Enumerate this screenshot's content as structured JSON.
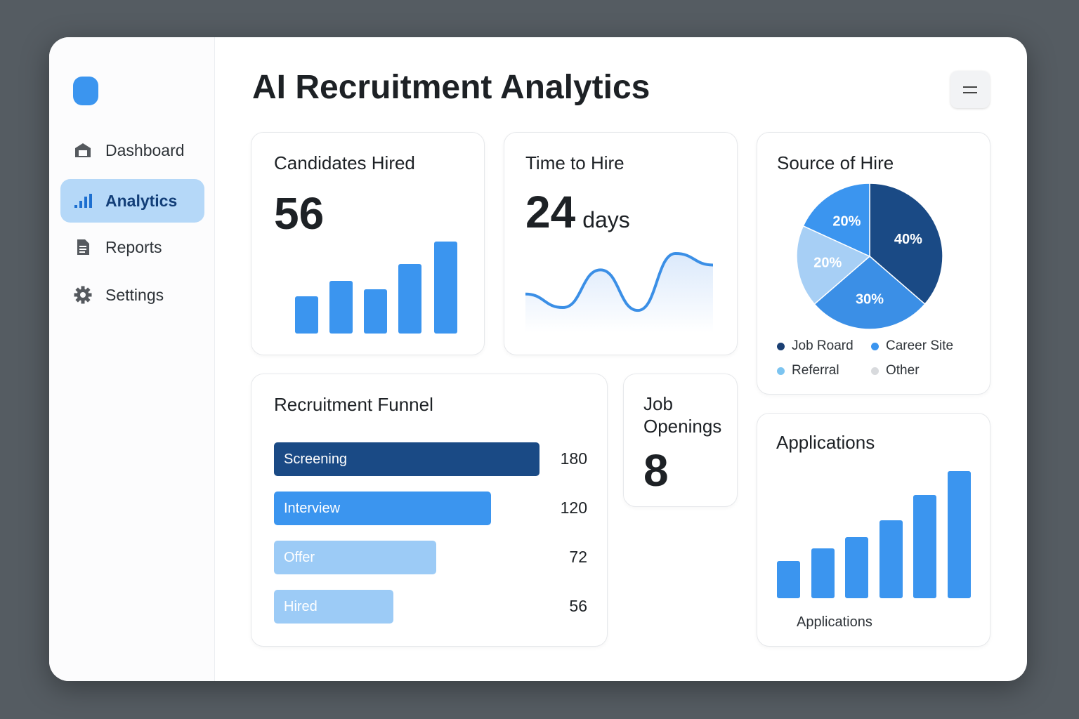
{
  "header": {
    "title": "AI Recruitment Analytics",
    "menu_icon": "menu-icon"
  },
  "sidebar": {
    "items": [
      {
        "label": "Dashboard",
        "icon": "home-icon"
      },
      {
        "label": "Analytics",
        "icon": "bar-chart-icon",
        "active": true
      },
      {
        "label": "Reports",
        "icon": "document-icon"
      },
      {
        "label": "Settings",
        "icon": "gear-icon"
      }
    ]
  },
  "colors": {
    "accent": "#3b95ef",
    "dark": "#1a4a85",
    "light": "#9ccbf6",
    "active_bg": "#b5d8f8"
  },
  "candidates_hired": {
    "title": "Candidates Hired",
    "value": "56"
  },
  "time_to_hire": {
    "title": "Time to Hire",
    "value": "24",
    "unit": "days"
  },
  "job_openings": {
    "title": "Job Openings",
    "value": "8"
  },
  "chart_data": [
    {
      "type": "bar",
      "title": "Candidates Hired",
      "values": [
        53,
        75,
        63,
        99,
        131
      ]
    },
    {
      "type": "line",
      "title": "Time to Hire",
      "values": [
        58,
        44,
        83,
        41,
        100,
        88
      ]
    },
    {
      "type": "pie",
      "title": "Source of Hire",
      "slices": [
        {
          "name": "Job Roard",
          "value": 40,
          "label": "40%",
          "color": "#1a4a85"
        },
        {
          "name": "Career Site",
          "value": 30,
          "label": "30%",
          "color": "#3b8fe6"
        },
        {
          "name": "Referral",
          "value": 20,
          "label": "20%",
          "color": "#a7cff5"
        },
        {
          "name": "Other",
          "value": 20,
          "label": "20%",
          "color": "#3b95ef"
        }
      ],
      "legend": [
        {
          "name": "Job Roard",
          "color": "#1a3f73"
        },
        {
          "name": "Career Site",
          "color": "#3b95ef"
        },
        {
          "name": "Referral",
          "color": "#7cc4f0"
        },
        {
          "name": "Other",
          "color": "#d8dadd"
        }
      ]
    },
    {
      "type": "bar",
      "title": "Recruitment Funnel",
      "categories": [
        "Screening",
        "Interview",
        "Offer",
        "Hired"
      ],
      "values": [
        180,
        120,
        72,
        56
      ]
    },
    {
      "type": "bar",
      "title": "Applications",
      "xlabel": "Applications",
      "values": [
        53,
        71,
        87,
        111,
        147,
        181
      ]
    }
  ]
}
